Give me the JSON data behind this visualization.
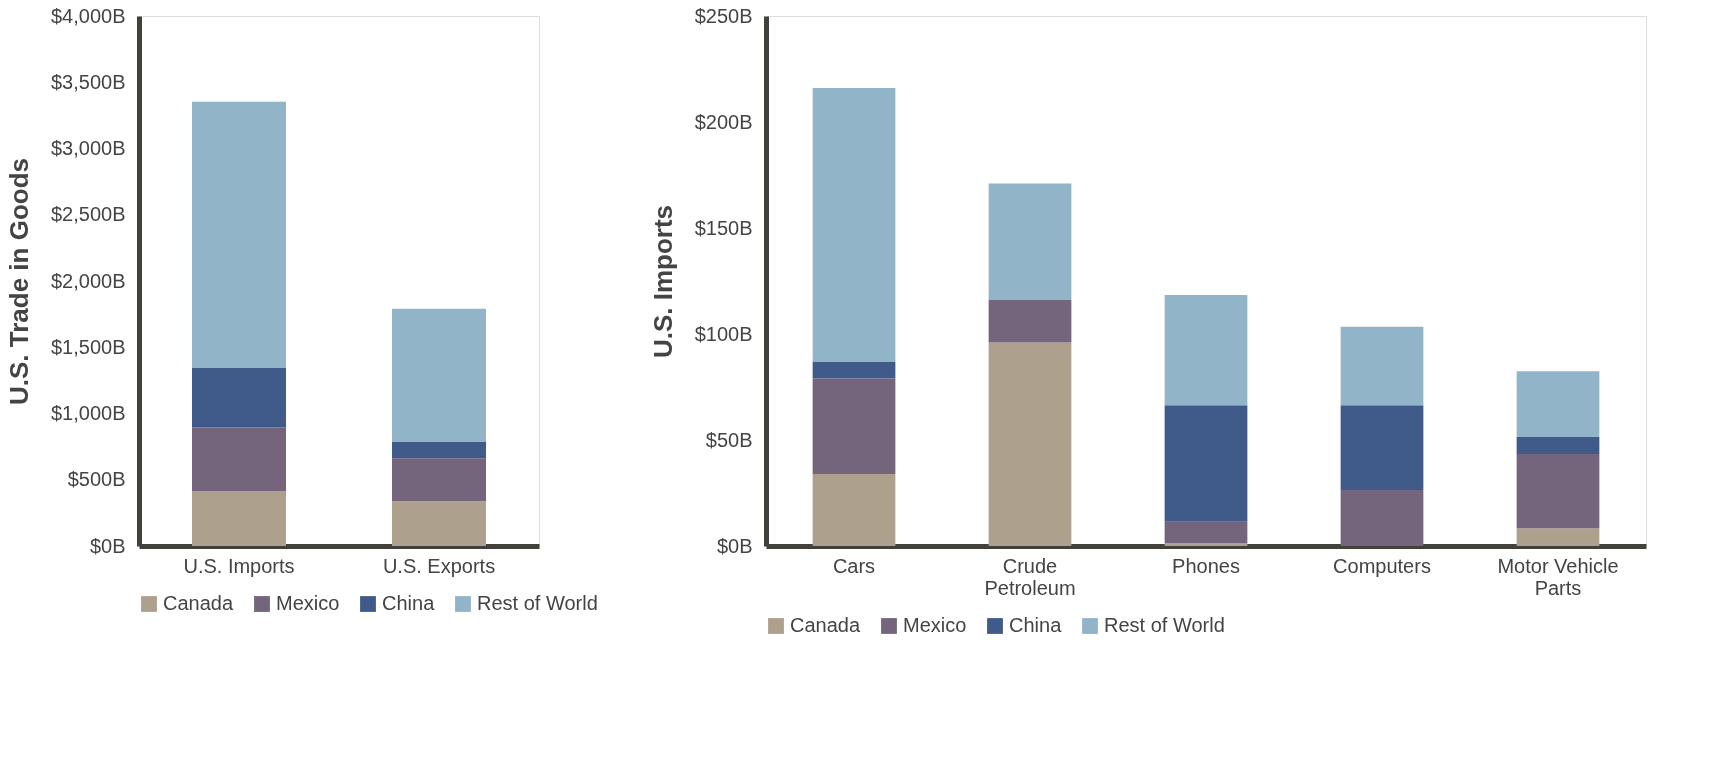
{
  "chart_data": [
    {
      "type": "bar",
      "stacked": true,
      "ylabel": "U.S. Trade in Goods",
      "categories": [
        "U.S. Imports",
        "U.S. Exports"
      ],
      "series": [
        {
          "name": "Canada",
          "color": "#ada18e",
          "values": [
            415,
            337
          ]
        },
        {
          "name": "Mexico",
          "color": "#74657d",
          "values": [
            480,
            326
          ]
        },
        {
          "name": "China",
          "color": "#405b8a",
          "values": [
            448,
            125
          ]
        },
        {
          "name": "Rest of World",
          "color": "#92b4c8",
          "values": [
            2009,
            1003
          ]
        }
      ],
      "ylim": [
        0,
        4000
      ],
      "yticks": [
        {
          "value": 0,
          "label": "$0B"
        },
        {
          "value": 500,
          "label": "$500B"
        },
        {
          "value": 1000,
          "label": "$1,000B"
        },
        {
          "value": 1500,
          "label": "$1,500B"
        },
        {
          "value": 2000,
          "label": "$2,000B"
        },
        {
          "value": 2500,
          "label": "$2,500B"
        },
        {
          "value": 3000,
          "label": "$3,000B"
        },
        {
          "value": 3500,
          "label": "$3,500B"
        },
        {
          "value": 4000,
          "label": "$4,000B"
        }
      ],
      "grid": false,
      "legend": "bottom"
    },
    {
      "type": "bar",
      "stacked": true,
      "ylabel": "U.S. Imports",
      "categories": [
        "Cars",
        "Crude Petroleum",
        "Phones",
        "Computers",
        "Motor Vehicle Parts"
      ],
      "series": [
        {
          "name": "Canada",
          "color": "#ada18e",
          "values": [
            34,
            96,
            1.4,
            0,
            8.4
          ]
        },
        {
          "name": "Mexico",
          "color": "#74657d",
          "values": [
            45,
            20,
            10,
            26.4,
            35
          ]
        },
        {
          "name": "China",
          "color": "#405b8a",
          "values": [
            8,
            0,
            55,
            40,
            8
          ]
        },
        {
          "name": "Rest of World",
          "color": "#92b4c8",
          "values": [
            129,
            55,
            52,
            37,
            31
          ]
        }
      ],
      "ylim": [
        0,
        250
      ],
      "yticks": [
        {
          "value": 0,
          "label": "$0B"
        },
        {
          "value": 50,
          "label": "$50B"
        },
        {
          "value": 100,
          "label": "$100B"
        },
        {
          "value": 150,
          "label": "$150B"
        },
        {
          "value": 200,
          "label": "$200B"
        },
        {
          "value": 250,
          "label": "$250B"
        }
      ],
      "grid": false,
      "legend": "bottom"
    }
  ]
}
